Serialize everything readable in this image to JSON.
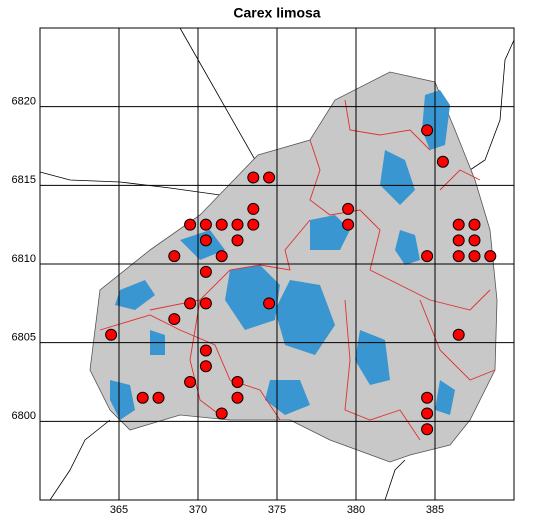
{
  "chart_data": {
    "type": "scatter",
    "title": "Carex limosa",
    "x": [
      384.5,
      385.5,
      373.5,
      374.5,
      373.5,
      379.5,
      369.5,
      370.5,
      371.5,
      372.5,
      373.5,
      379.5,
      386.5,
      387.5,
      370.5,
      372.5,
      386.5,
      387.5,
      368.5,
      371.5,
      384.5,
      386.5,
      387.5,
      388.5,
      370.5,
      369.5,
      370.5,
      374.5,
      368.5,
      364.5,
      386.5,
      370.5,
      370.5,
      369.5,
      372.5,
      366.5,
      367.5,
      372.5,
      384.5,
      371.5,
      384.5,
      384.5
    ],
    "y": [
      6818.5,
      6816.5,
      6815.5,
      6815.5,
      6813.5,
      6813.5,
      6812.5,
      6812.5,
      6812.5,
      6812.5,
      6812.5,
      6812.5,
      6812.5,
      6812.5,
      6811.5,
      6811.5,
      6811.5,
      6811.5,
      6810.5,
      6810.5,
      6810.5,
      6810.5,
      6810.5,
      6810.5,
      6809.5,
      6807.5,
      6807.5,
      6807.5,
      6806.5,
      6805.5,
      6805.5,
      6804.5,
      6803.5,
      6802.5,
      6802.5,
      6801.5,
      6801.5,
      6801.5,
      6801.5,
      6800.5,
      6800.5,
      6799.5
    ],
    "color": "#ff0000",
    "xlim": [
      360,
      390
    ],
    "ylim": [
      6795,
      6825
    ],
    "xticks": [
      365,
      370,
      375,
      380,
      385
    ],
    "yticks": [
      6800,
      6805,
      6810,
      6815,
      6820
    ],
    "grid": true
  }
}
